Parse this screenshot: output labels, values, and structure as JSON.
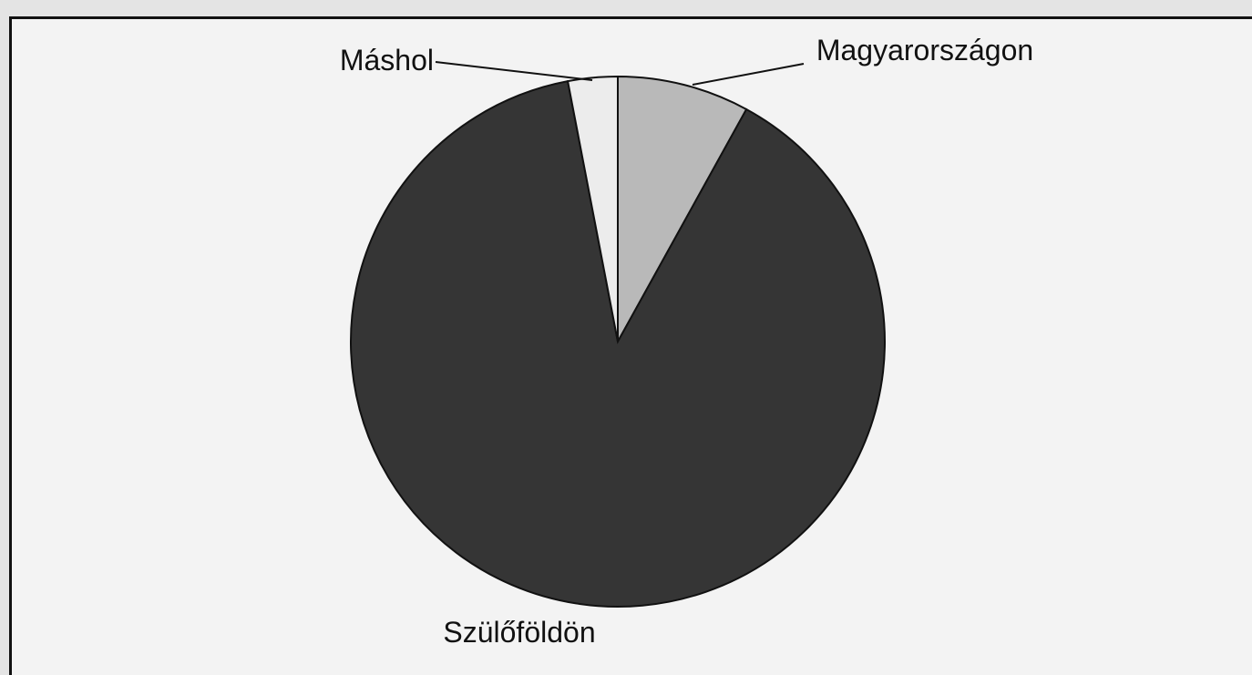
{
  "chart_data": {
    "type": "pie",
    "categories": [
      "Magyarországon",
      "Szülőföldön",
      "Máshol"
    ],
    "values": [
      8,
      89,
      3
    ],
    "colors": [
      "#b9b9b9",
      "#353535",
      "#ececec"
    ]
  }
}
